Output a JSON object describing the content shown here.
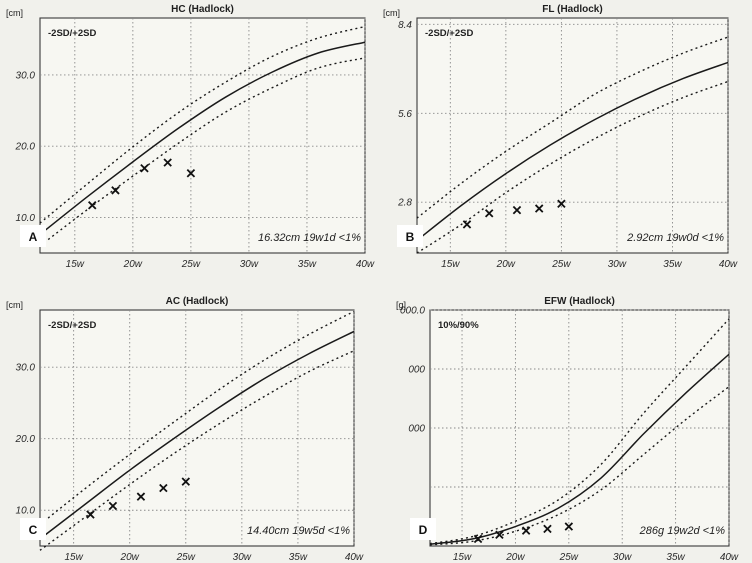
{
  "chart_data": [
    {
      "panel": "A",
      "type": "line",
      "title": "HC (Hadlock)",
      "ylabel": "[cm]",
      "xlim": [
        12,
        40
      ],
      "ylim": [
        5,
        38
      ],
      "xticks": [
        15,
        20,
        25,
        30,
        35,
        40
      ],
      "xtick_labels": [
        "15w",
        "20w",
        "25w",
        "30w",
        "35w",
        "40w"
      ],
      "yticks": [
        10,
        20,
        30
      ],
      "ytick_labels": [
        "10.0",
        "20.0",
        "30.0"
      ],
      "legend": "-2SD/+2SD",
      "result": "16.32cm 19w1d <1%",
      "series": [
        {
          "name": "+2SD",
          "style": "dotted",
          "x": [
            12,
            16,
            20,
            24,
            28,
            32,
            36,
            40
          ],
          "y": [
            9.2,
            14.6,
            19.9,
            24.8,
            29.0,
            32.6,
            35.2,
            36.8
          ]
        },
        {
          "name": "mean",
          "style": "solid",
          "x": [
            12,
            16,
            20,
            24,
            28,
            32,
            36,
            40
          ],
          "y": [
            7.6,
            12.8,
            17.8,
            22.6,
            26.9,
            30.4,
            33.1,
            34.6
          ]
        },
        {
          "name": "-2SD",
          "style": "dotted",
          "x": [
            12,
            16,
            20,
            24,
            28,
            32,
            36,
            40
          ],
          "y": [
            6.0,
            11.0,
            15.8,
            20.5,
            24.8,
            28.2,
            31.0,
            32.4
          ]
        }
      ],
      "measurements": {
        "x": [
          16.5,
          18.5,
          21,
          23,
          25
        ],
        "y": [
          11.7,
          13.8,
          16.9,
          17.7,
          16.2
        ]
      }
    },
    {
      "panel": "B",
      "type": "line",
      "title": "FL (Hadlock)",
      "ylabel": "[cm]",
      "xlim": [
        12,
        40
      ],
      "ylim": [
        1.2,
        8.6
      ],
      "xticks": [
        15,
        20,
        25,
        30,
        35,
        40
      ],
      "xtick_labels": [
        "15w",
        "20w",
        "25w",
        "30w",
        "35w",
        "40w"
      ],
      "yticks": [
        2.8,
        5.6,
        8.4
      ],
      "ytick_labels": [
        "2.8",
        "5.6",
        "8.4"
      ],
      "legend": "-2SD/+2SD",
      "result": "2.92cm 19w0d <1%",
      "series": [
        {
          "name": "+2SD",
          "style": "dotted",
          "x": [
            12,
            16,
            20,
            24,
            28,
            32,
            36,
            40
          ],
          "y": [
            2.3,
            3.4,
            4.4,
            5.3,
            6.2,
            6.9,
            7.5,
            8.0
          ]
        },
        {
          "name": "mean",
          "style": "solid",
          "x": [
            12,
            16,
            20,
            24,
            28,
            32,
            36,
            40
          ],
          "y": [
            1.6,
            2.7,
            3.7,
            4.6,
            5.4,
            6.1,
            6.7,
            7.2
          ]
        },
        {
          "name": "-2SD",
          "style": "dotted",
          "x": [
            12,
            16,
            20,
            24,
            28,
            32,
            36,
            40
          ],
          "y": [
            1.2,
            2.1,
            3.1,
            4.0,
            4.8,
            5.5,
            6.1,
            6.6
          ]
        }
      ],
      "measurements": {
        "x": [
          16.5,
          18.5,
          21,
          23,
          25
        ],
        "y": [
          2.1,
          2.45,
          2.55,
          2.6,
          2.75
        ]
      }
    },
    {
      "panel": "C",
      "type": "line",
      "title": "AC (Hadlock)",
      "ylabel": "[cm]",
      "xlim": [
        12,
        40
      ],
      "ylim": [
        5,
        38
      ],
      "xticks": [
        15,
        20,
        25,
        30,
        35,
        40
      ],
      "xtick_labels": [
        "15w",
        "20w",
        "25w",
        "30w",
        "35w",
        "40w"
      ],
      "yticks": [
        10,
        20,
        30
      ],
      "ytick_labels": [
        "10.0",
        "20.0",
        "30.0"
      ],
      "legend": "-2SD/+2SD",
      "result": "14.40cm 19w5d <1%",
      "series": [
        {
          "name": "+2SD",
          "style": "dotted",
          "x": [
            12,
            16,
            20,
            24,
            28,
            32,
            36,
            40
          ],
          "y": [
            8.0,
            13.0,
            17.8,
            22.4,
            26.9,
            31.0,
            34.6,
            37.8
          ]
        },
        {
          "name": "mean",
          "style": "solid",
          "x": [
            12,
            16,
            20,
            24,
            28,
            32,
            36,
            40
          ],
          "y": [
            6.0,
            10.8,
            15.6,
            20.1,
            24.4,
            28.4,
            31.9,
            35.0
          ]
        },
        {
          "name": "-2SD",
          "style": "dotted",
          "x": [
            12,
            16,
            20,
            24,
            28,
            32,
            36,
            40
          ],
          "y": [
            4.4,
            9.0,
            13.6,
            18.0,
            22.1,
            25.9,
            29.4,
            32.3
          ]
        }
      ],
      "measurements": {
        "x": [
          16.5,
          18.5,
          21,
          23,
          25
        ],
        "y": [
          9.4,
          10.6,
          11.9,
          13.1,
          14.0
        ]
      }
    },
    {
      "panel": "D",
      "type": "line",
      "title": "EFW (Hadlock)",
      "ylabel": "[g]",
      "xlim": [
        12,
        40
      ],
      "ylim": [
        0,
        4000
      ],
      "xticks": [
        15,
        20,
        25,
        30,
        35,
        40
      ],
      "xtick_labels": [
        "15w",
        "20w",
        "25w",
        "30w",
        "35w",
        "40w"
      ],
      "yticks": [
        1000,
        2000,
        3000,
        4000
      ],
      "ytick_labels": [
        "",
        "000",
        "000",
        "000.0"
      ],
      "legend": "10%/90%",
      "result": "286g 19w2d <1%",
      "series": [
        {
          "name": "90%",
          "style": "dotted",
          "x": [
            12,
            16,
            20,
            24,
            28,
            32,
            36,
            40
          ],
          "y": [
            40,
            160,
            420,
            780,
            1380,
            2250,
            3050,
            3850
          ]
        },
        {
          "name": "mean",
          "style": "solid",
          "x": [
            12,
            16,
            20,
            24,
            28,
            32,
            36,
            40
          ],
          "y": [
            30,
            120,
            330,
            640,
            1150,
            1900,
            2600,
            3250
          ]
        },
        {
          "name": "10%",
          "style": "dotted",
          "x": [
            12,
            16,
            20,
            24,
            28,
            32,
            36,
            40
          ],
          "y": [
            20,
            80,
            250,
            530,
            950,
            1550,
            2150,
            2700
          ]
        }
      ],
      "measurements": {
        "x": [
          16.5,
          18.5,
          21,
          23,
          25
        ],
        "y": [
          120,
          190,
          260,
          290,
          330
        ]
      }
    }
  ]
}
